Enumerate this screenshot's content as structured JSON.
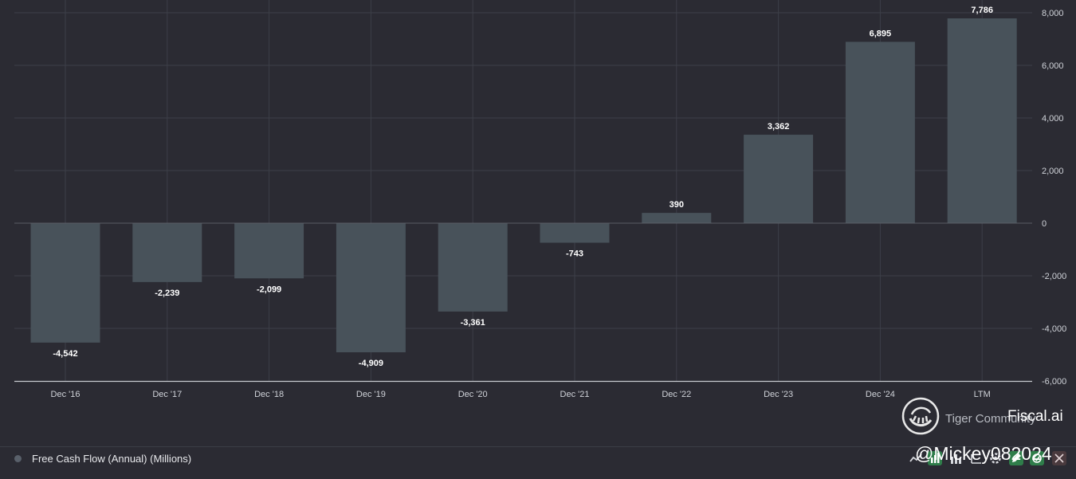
{
  "chart_data": {
    "type": "bar",
    "title": "",
    "xlabel": "",
    "ylabel": "",
    "categories": [
      "Dec '16",
      "Dec '17",
      "Dec '18",
      "Dec '19",
      "Dec '20",
      "Dec '21",
      "Dec '22",
      "Dec '23",
      "Dec '24",
      "LTM"
    ],
    "series": [
      {
        "name": "Free Cash Flow (Annual) (Millions)",
        "values": [
          -4542,
          -2239,
          -2099,
          -4909,
          -3361,
          -743,
          390,
          3362,
          6895,
          7786
        ],
        "value_labels": [
          "-4,542",
          "-2,239",
          "-2,099",
          "-4,909",
          "-3,361",
          "-743",
          "390",
          "3,362",
          "6,895",
          "7,786"
        ]
      }
    ],
    "ylim": [
      -6000,
      8000
    ],
    "y_ticks": [
      8000,
      6000,
      4000,
      2000,
      0,
      -2000,
      -4000,
      -6000
    ],
    "y_tick_labels": [
      "8,000",
      "6,000",
      "4,000",
      "2,000",
      "0",
      "-2,000",
      "-4,000",
      "-6,000"
    ],
    "y_axis_position": "right",
    "grid": true,
    "legend_position": "bottom-left"
  },
  "colors": {
    "background": "#2b2b33",
    "bar": "#48525a",
    "grid": "#3d3f48",
    "axis": "#c8cad0",
    "zero_line": "#5a5d66"
  },
  "legend": {
    "label": "Free Cash Flow (Annual) (Millions)"
  },
  "branding": {
    "powered_by": "Tiger Community",
    "brand_name": "Fiscal.ai",
    "logo_icon": "tiger-paw-icon"
  },
  "watermark": {
    "text": "@Mickey082024"
  },
  "toolbar": {
    "icons": [
      "line-chart-icon",
      "bar-chart-icon",
      "column-chart-icon",
      "table-icon",
      "settings-icon",
      "edit-icon",
      "share-icon",
      "close-icon"
    ]
  }
}
